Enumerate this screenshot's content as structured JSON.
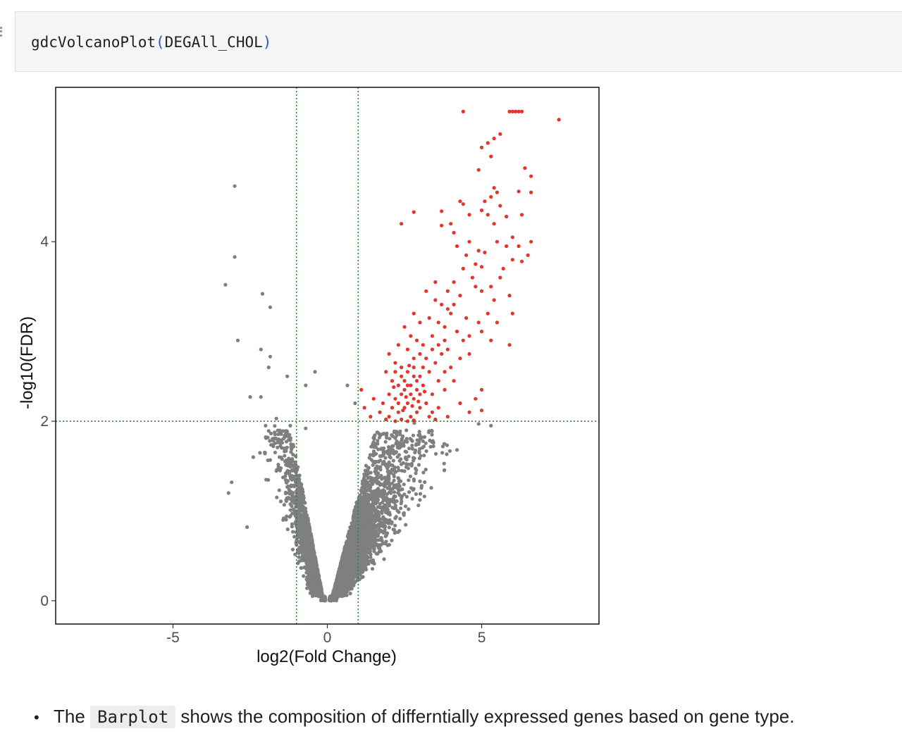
{
  "code_cell": {
    "function_name": "gdcVolcanoPlot",
    "open_paren": "(",
    "argument": "DEGAll_CHOL",
    "close_paren": ")"
  },
  "note": {
    "prefix": "The ",
    "code": "Barplot",
    "suffix": " shows the composition of differntially expressed genes based on gene type."
  },
  "colors": {
    "significant": "#e8322a",
    "non_significant": "#7f7f7f",
    "threshold_line": "#3c7a3c"
  },
  "chart_data": {
    "type": "scatter",
    "title": "",
    "xlabel": "log2(Fold Change)",
    "ylabel": "-log10(FDR)",
    "xlim": [
      -8.8,
      8.8
    ],
    "ylim": [
      -0.26,
      5.72
    ],
    "x_ticks": [
      {
        "value": -5,
        "label": "-5"
      },
      {
        "value": 0,
        "label": "0"
      },
      {
        "value": 5,
        "label": "5"
      }
    ],
    "y_ticks": [
      {
        "value": 0,
        "label": "0"
      },
      {
        "value": 2,
        "label": "2"
      },
      {
        "value": 4,
        "label": "4"
      }
    ],
    "thresholds": {
      "log2fc": [
        -1,
        1
      ],
      "fdr_log10": 2
    },
    "grid": false,
    "legend": "none",
    "series": [
      {
        "color": "#e8322a",
        "points": [
          [
            4.4,
            5.45
          ],
          [
            5.9,
            5.45
          ],
          [
            6.0,
            5.45
          ],
          [
            6.1,
            5.45
          ],
          [
            6.2,
            5.45
          ],
          [
            6.3,
            5.45
          ],
          [
            7.5,
            5.36
          ],
          [
            5.6,
            5.2
          ],
          [
            5.4,
            5.15
          ],
          [
            5.2,
            5.1
          ],
          [
            5.0,
            5.05
          ],
          [
            5.3,
            4.95
          ],
          [
            4.9,
            4.8
          ],
          [
            6.4,
            4.82
          ],
          [
            6.6,
            4.73
          ],
          [
            6.2,
            4.56
          ],
          [
            6.6,
            4.55
          ],
          [
            5.4,
            4.6
          ],
          [
            5.5,
            4.55
          ],
          [
            5.3,
            4.5
          ],
          [
            4.3,
            4.45
          ],
          [
            4.4,
            4.42
          ],
          [
            5.1,
            4.45
          ],
          [
            5.6,
            4.4
          ],
          [
            2.8,
            4.33
          ],
          [
            3.7,
            4.34
          ],
          [
            4.6,
            4.3
          ],
          [
            5.0,
            4.35
          ],
          [
            5.2,
            4.3
          ],
          [
            5.8,
            4.28
          ],
          [
            5.4,
            4.2
          ],
          [
            3.7,
            4.18
          ],
          [
            6.0,
            4.05
          ],
          [
            4.0,
            4.2
          ],
          [
            4.1,
            4.1
          ],
          [
            2.4,
            4.2
          ],
          [
            4.6,
            4.0
          ],
          [
            5.8,
            3.95
          ],
          [
            6.2,
            3.95
          ],
          [
            4.2,
            3.95
          ],
          [
            4.9,
            3.9
          ],
          [
            5.1,
            3.88
          ],
          [
            6.6,
            4.0
          ],
          [
            6.3,
            3.78
          ],
          [
            5.6,
            3.6
          ],
          [
            4.4,
            3.7
          ],
          [
            4.5,
            3.85
          ],
          [
            4.8,
            3.75
          ],
          [
            5.0,
            3.72
          ],
          [
            5.7,
            3.7
          ],
          [
            6.0,
            3.8
          ],
          [
            3.5,
            3.55
          ],
          [
            3.9,
            3.45
          ],
          [
            4.1,
            3.55
          ],
          [
            4.3,
            3.4
          ],
          [
            4.8,
            3.5
          ],
          [
            5.0,
            3.45
          ],
          [
            5.3,
            3.5
          ],
          [
            3.2,
            3.45
          ],
          [
            3.5,
            3.35
          ],
          [
            3.7,
            3.3
          ],
          [
            3.9,
            3.25
          ],
          [
            4.0,
            3.2
          ],
          [
            4.5,
            3.15
          ],
          [
            5.2,
            3.2
          ],
          [
            5.5,
            3.1
          ],
          [
            6.0,
            3.2
          ],
          [
            2.8,
            3.2
          ],
          [
            3.0,
            3.1
          ],
          [
            3.3,
            3.15
          ],
          [
            3.6,
            3.1
          ],
          [
            3.8,
            3.05
          ],
          [
            4.2,
            3.0
          ],
          [
            4.6,
            2.95
          ],
          [
            5.0,
            3.0
          ],
          [
            2.5,
            3.05
          ],
          [
            2.7,
            2.95
          ],
          [
            2.9,
            2.9
          ],
          [
            3.1,
            2.85
          ],
          [
            3.4,
            2.95
          ],
          [
            3.6,
            2.85
          ],
          [
            3.9,
            2.8
          ],
          [
            4.4,
            2.9
          ],
          [
            5.3,
            2.9
          ],
          [
            5.9,
            2.85
          ],
          [
            2.3,
            2.85
          ],
          [
            2.6,
            2.8
          ],
          [
            2.8,
            2.7
          ],
          [
            3.0,
            2.75
          ],
          [
            3.2,
            2.7
          ],
          [
            3.5,
            2.65
          ],
          [
            3.7,
            2.75
          ],
          [
            4.0,
            2.6
          ],
          [
            4.3,
            2.7
          ],
          [
            2.0,
            2.75
          ],
          [
            2.2,
            2.65
          ],
          [
            2.4,
            2.6
          ],
          [
            2.6,
            2.55
          ],
          [
            2.8,
            2.6
          ],
          [
            3.0,
            2.5
          ],
          [
            3.3,
            2.55
          ],
          [
            3.6,
            2.45
          ],
          [
            1.9,
            2.55
          ],
          [
            2.1,
            2.45
          ],
          [
            2.3,
            2.4
          ],
          [
            2.5,
            2.45
          ],
          [
            2.7,
            2.4
          ],
          [
            2.9,
            2.35
          ],
          [
            3.1,
            2.4
          ],
          [
            3.4,
            2.3
          ],
          [
            3.8,
            2.35
          ],
          [
            5.0,
            2.35
          ],
          [
            2.0,
            2.3
          ],
          [
            2.2,
            2.25
          ],
          [
            2.4,
            2.3
          ],
          [
            2.6,
            2.2
          ],
          [
            2.8,
            2.25
          ],
          [
            3.0,
            2.15
          ],
          [
            3.2,
            2.2
          ],
          [
            3.6,
            2.15
          ],
          [
            4.3,
            2.2
          ],
          [
            4.8,
            2.25
          ],
          [
            1.1,
            2.35
          ],
          [
            1.5,
            2.25
          ],
          [
            1.8,
            2.2
          ],
          [
            2.1,
            2.15
          ],
          [
            2.3,
            2.1
          ],
          [
            2.5,
            2.15
          ],
          [
            2.7,
            2.05
          ],
          [
            2.9,
            2.1
          ],
          [
            3.3,
            2.05
          ],
          [
            4.6,
            2.1
          ],
          [
            5.0,
            2.12
          ],
          [
            1.7,
            2.1
          ],
          [
            2.0,
            2.05
          ],
          [
            2.2,
            2.0
          ],
          [
            2.4,
            2.02
          ],
          [
            2.6,
            2.0
          ],
          [
            2.8,
            2.01
          ],
          [
            3.5,
            2.02
          ],
          [
            1.2,
            2.15
          ],
          [
            1.4,
            2.05
          ],
          [
            1.9,
            2.02
          ],
          [
            2.5,
            2.35
          ],
          [
            2.6,
            2.4
          ],
          [
            2.7,
            2.3
          ],
          [
            2.9,
            2.45
          ],
          [
            3.0,
            2.3
          ],
          [
            2.8,
            2.5
          ],
          [
            3.1,
            2.6
          ],
          [
            2.4,
            2.5
          ],
          [
            2.2,
            2.55
          ],
          [
            3.4,
            2.8
          ],
          [
            3.8,
            2.9
          ],
          [
            4.1,
            3.3
          ],
          [
            4.7,
            3.6
          ],
          [
            5.5,
            4.0
          ],
          [
            6.3,
            4.3
          ],
          [
            6.5,
            3.85
          ],
          [
            5.9,
            3.4
          ],
          [
            5.4,
            3.35
          ],
          [
            4.9,
            3.1
          ],
          [
            4.6,
            2.75
          ],
          [
            4.1,
            2.45
          ],
          [
            3.8,
            2.55
          ],
          [
            3.4,
            2.1
          ],
          [
            3.9,
            2.05
          ],
          [
            2.3,
            2.2
          ],
          [
            2.55,
            2.27
          ],
          [
            2.75,
            2.17
          ],
          [
            2.95,
            2.22
          ],
          [
            3.15,
            2.33
          ],
          [
            2.15,
            2.38
          ],
          [
            2.45,
            2.12
          ],
          [
            2.65,
            2.62
          ]
        ]
      },
      {
        "color": "#7f7f7f",
        "points": [
          [
            -3.0,
            4.62
          ],
          [
            -3.0,
            3.83
          ],
          [
            -3.3,
            3.52
          ],
          [
            -2.1,
            3.42
          ],
          [
            -1.85,
            3.27
          ],
          [
            -2.9,
            2.9
          ],
          [
            -2.15,
            2.8
          ],
          [
            -1.85,
            2.72
          ],
          [
            -1.9,
            2.6
          ],
          [
            -0.4,
            2.55
          ],
          [
            -1.3,
            2.5
          ],
          [
            -0.7,
            2.4
          ],
          [
            0.65,
            2.4
          ],
          [
            -2.5,
            2.27
          ],
          [
            -2.15,
            2.27
          ],
          [
            -1.65,
            2.03
          ],
          [
            -2.0,
            1.95
          ],
          [
            -1.2,
            1.95
          ],
          [
            -0.7,
            1.92
          ],
          [
            0.9,
            2.2
          ],
          [
            4.9,
            1.97
          ],
          [
            4.2,
            1.68
          ],
          [
            5.3,
            1.95
          ],
          [
            -3.1,
            1.32
          ],
          [
            -2.6,
            0.82
          ],
          [
            -2.4,
            1.6
          ],
          [
            -3.2,
            1.2
          ]
        ],
        "dense_cloud": true
      }
    ]
  }
}
